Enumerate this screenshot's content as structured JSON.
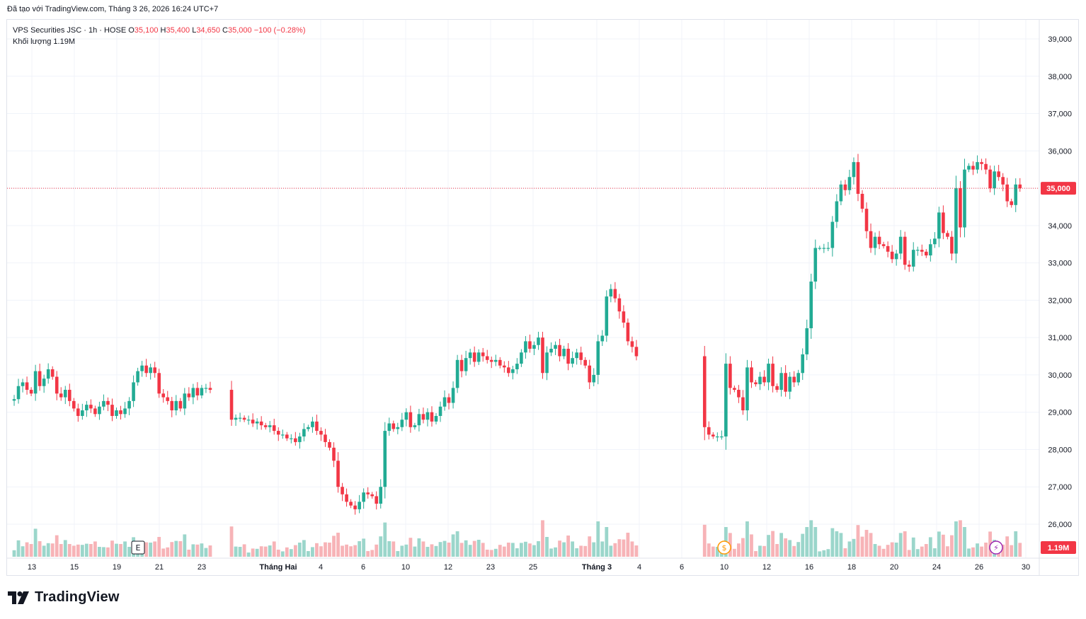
{
  "credit": "Đã tạo với TradingView.com, Tháng 3 26, 2026 16:24 UTC+7",
  "legend": {
    "symbol": "VPS Securities JSC · 1h · HOSE",
    "open_label": "O",
    "open": "35,100",
    "high_label": "H",
    "high": "35,400",
    "low_label": "L",
    "low": "34,650",
    "close_label": "C",
    "close": "35,000",
    "change": "−100 (−0.28%)",
    "volume_label": "Khối lượng",
    "volume": "1.19M"
  },
  "brand": "TradingView",
  "colors": {
    "up": "#22ab94",
    "down": "#f23645",
    "vol_up": "#9bd6cb",
    "vol_down": "#f7b3b7",
    "grid": "#f0f3fa"
  },
  "chart_data": {
    "type": "candlestick",
    "y_axis": {
      "range": [
        25600,
        39300
      ],
      "ticks": [
        26000,
        27000,
        28000,
        29000,
        30000,
        31000,
        32000,
        33000,
        34000,
        35000,
        36000,
        37000,
        38000,
        39000
      ],
      "tick_labels": [
        "26,000",
        "27,000",
        "28,000",
        "29,000",
        "30,000",
        "31,000",
        "32,000",
        "33,000",
        "34,000",
        "35,000",
        "36,000",
        "37,000",
        "38,000",
        "39,000"
      ]
    },
    "x_axis": {
      "tick_labels": [
        "13",
        "15",
        "19",
        "21",
        "23",
        "Tháng Hai",
        "4",
        "6",
        "10",
        "12",
        "23",
        "25",
        "Tháng 3",
        "4",
        "6",
        "10",
        "12",
        "16",
        "18",
        "20",
        "24",
        "26",
        "30"
      ],
      "bold_labels": [
        "Tháng Hai",
        "Tháng 3"
      ]
    },
    "last_price": {
      "value": 35000,
      "label": "35,000"
    },
    "last_volume_label": "1.19M",
    "markers": [
      {
        "kind": "earnings",
        "text": "E"
      },
      {
        "kind": "dividend",
        "text": "$"
      },
      {
        "kind": "split",
        "text": "⚡"
      }
    ],
    "segments": [
      {
        "start": 1,
        "closes": [
          29350,
          29700,
          29800,
          29600,
          29500,
          30100,
          29700,
          29900,
          30150,
          29950,
          29500,
          29400,
          29600,
          29300,
          29100,
          28900,
          29050,
          29200,
          29100,
          28950,
          29150,
          29300,
          29200,
          28900,
          29050,
          28950,
          29100,
          29300,
          29800,
          30100,
          30250,
          30050,
          30200,
          30050,
          29500,
          29400,
          29300,
          29050,
          29300,
          29100,
          29500,
          29400,
          29650,
          29450,
          29650,
          29650,
          29600
        ]
      },
      {
        "start": 52,
        "closes": [
          28800,
          28850,
          28850,
          28800,
          28800,
          28700,
          28750,
          28650,
          28600,
          28650,
          28500,
          28400,
          28400,
          28300,
          28300,
          28200,
          28350,
          28550,
          28600,
          28750,
          28500,
          28400,
          28200,
          28050,
          27700,
          27000,
          26800,
          26600,
          26500,
          26400,
          26600,
          26850,
          26800,
          26750,
          26550,
          27000,
          28500,
          28700,
          28550,
          28600,
          28800,
          29000,
          28600,
          28650,
          28950,
          28800,
          29000,
          28750,
          28900,
          29150,
          29400,
          29250,
          29650,
          30400,
          30100,
          30450,
          30600,
          30350,
          30600,
          30500,
          30400,
          30350,
          30400,
          30250,
          30200,
          30050,
          30150,
          30300,
          30600,
          30900,
          30700,
          30800,
          31000,
          30050,
          30600,
          30700,
          30800,
          30500,
          30700,
          30300,
          30450,
          30600,
          30400,
          30250,
          29800,
          30000,
          30900,
          31050,
          32100,
          32300,
          32050,
          31700,
          31400,
          30900,
          30750,
          30500
        ]
      },
      {
        "start": 163,
        "closes": [
          28600,
          28400,
          28350,
          28350,
          28350
        ]
      },
      {
        "start": 168,
        "closes": [
          30300,
          29650,
          29600,
          29400,
          29050,
          30200,
          29800,
          29750,
          29950,
          29800,
          30300,
          29700,
          29600,
          30050,
          29550,
          29950,
          29800,
          30050,
          30550,
          31250,
          32500,
          33400,
          33400,
          33400,
          33400,
          34100,
          34650,
          35100,
          34950,
          35300,
          35700,
          34850,
          34450,
          33850,
          33400,
          33700,
          33500,
          33450,
          33300,
          33100,
          33250,
          33700,
          32950,
          32900,
          33350,
          33350,
          33300,
          33200,
          33500,
          33650,
          34350,
          33800,
          33700,
          33250,
          35000,
          33950,
          35500,
          35600,
          35500,
          35700,
          35650,
          35500,
          35000,
          35450,
          35300,
          35100,
          34650,
          34550,
          35100,
          35000
        ]
      }
    ]
  }
}
